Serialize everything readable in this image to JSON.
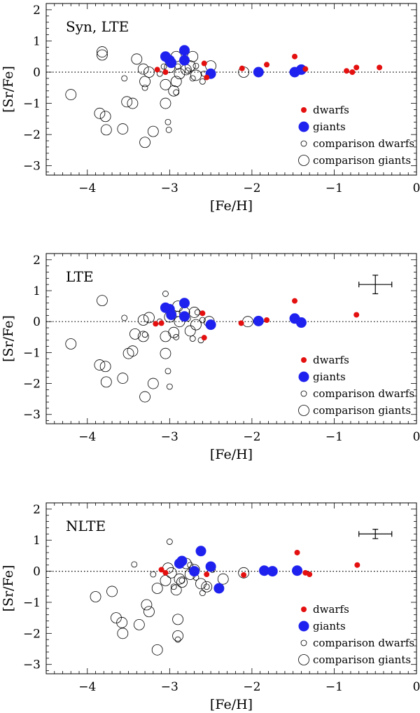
{
  "chart_data": [
    {
      "type": "scatter",
      "panel_label": "Syn, LTE",
      "xlabel": "[Fe/H]",
      "ylabel": "[Sr/Fe]",
      "xlim": [
        -4.5,
        0
      ],
      "ylim": [
        -3.3,
        2.2
      ],
      "xticks": [
        -4,
        -3,
        -2,
        -1,
        0
      ],
      "xtick_labels": [
        "−4",
        "−3",
        "−2",
        "−1",
        "0"
      ],
      "yticks": [
        -3,
        -2,
        -1,
        0,
        1,
        2
      ],
      "ytick_labels": [
        "−3",
        "−2",
        "−1",
        "0",
        "1",
        "2"
      ],
      "reference_line_y": 0,
      "legend": {
        "placement": "lower-right",
        "entries": [
          "dwarfs",
          "giants",
          "comparison dwarfs",
          "comparison giants"
        ]
      },
      "series": [
        {
          "name": "dwarfs",
          "points": [
            [
              -3.15,
              0.08
            ],
            [
              -3.05,
              0.0
            ],
            [
              -2.58,
              0.28
            ],
            [
              -2.55,
              -0.17
            ],
            [
              -2.12,
              0.12
            ],
            [
              -1.82,
              0.24
            ],
            [
              -1.48,
              0.5
            ],
            [
              -1.35,
              0.1
            ],
            [
              -0.85,
              0.04
            ],
            [
              -0.78,
              0.0
            ],
            [
              -0.73,
              0.15
            ],
            [
              -0.45,
              0.15
            ]
          ]
        },
        {
          "name": "giants",
          "points": [
            [
              -3.05,
              0.5
            ],
            [
              -3.0,
              0.38
            ],
            [
              -2.98,
              0.3
            ],
            [
              -2.82,
              0.7
            ],
            [
              -2.82,
              0.38
            ],
            [
              -2.5,
              -0.05
            ],
            [
              -1.92,
              0.0
            ],
            [
              -1.48,
              0.0
            ],
            [
              -1.4,
              0.08
            ]
          ]
        },
        {
          "name": "comparison dwarfs",
          "points": [
            [
              -3.55,
              -0.2
            ],
            [
              -3.3,
              -0.5
            ],
            [
              -3.12,
              -0.05
            ],
            [
              -3.07,
              0.18
            ],
            [
              -3.02,
              -1.6
            ],
            [
              -3.01,
              -1.85
            ],
            [
              -2.92,
              -0.65
            ],
            [
              -2.9,
              0.18
            ],
            [
              -2.78,
              0.05
            ],
            [
              -2.72,
              -0.2
            ],
            [
              -2.68,
              0.2
            ],
            [
              -2.6,
              -0.3
            ],
            [
              -2.58,
              -0.05
            ]
          ]
        },
        {
          "name": "comparison giants",
          "points": [
            [
              -4.2,
              -0.72
            ],
            [
              -3.82,
              0.65
            ],
            [
              -3.82,
              0.55
            ],
            [
              -3.85,
              -1.32
            ],
            [
              -3.78,
              -1.42
            ],
            [
              -3.77,
              -1.85
            ],
            [
              -3.57,
              -1.82
            ],
            [
              -3.52,
              -0.95
            ],
            [
              -3.45,
              -1.0
            ],
            [
              -3.4,
              0.42
            ],
            [
              -3.32,
              0.1
            ],
            [
              -3.3,
              -0.3
            ],
            [
              -3.3,
              -2.25
            ],
            [
              -3.25,
              -0.0
            ],
            [
              -3.2,
              -1.9
            ],
            [
              -3.05,
              -1.0
            ],
            [
              -3.05,
              -0.4
            ],
            [
              -3.0,
              0.15
            ],
            [
              -2.95,
              -0.6
            ],
            [
              -2.92,
              -0.3
            ],
            [
              -2.92,
              0.5
            ],
            [
              -2.88,
              -0.05
            ],
            [
              -2.8,
              0.08
            ],
            [
              -2.75,
              0.2
            ],
            [
              -2.72,
              0.5
            ],
            [
              -2.68,
              -0.1
            ],
            [
              -2.5,
              0.2
            ],
            [
              -2.1,
              0.0
            ]
          ]
        }
      ]
    },
    {
      "type": "scatter",
      "panel_label": "LTE",
      "xlabel": "[Fe/H]",
      "ylabel": "[Sr/Fe]",
      "xlim": [
        -4.5,
        0
      ],
      "ylim": [
        -3.3,
        2.2
      ],
      "xticks": [
        -4,
        -3,
        -2,
        -1,
        0
      ],
      "xtick_labels": [
        "−4",
        "−3",
        "−2",
        "−1",
        "0"
      ],
      "yticks": [
        -3,
        -2,
        -1,
        0,
        1,
        2
      ],
      "ytick_labels": [
        "−3",
        "−2",
        "−1",
        "0",
        "1",
        "2"
      ],
      "reference_line_y": 0,
      "error_bar": {
        "x": -0.5,
        "y": 1.2,
        "xerr": 0.2,
        "yerr": 0.3
      },
      "legend": {
        "placement": "lower-right",
        "entries": [
          "dwarfs",
          "giants",
          "comparison dwarfs",
          "comparison giants"
        ]
      },
      "series": [
        {
          "name": "dwarfs",
          "points": [
            [
              -3.17,
              -0.07
            ],
            [
              -3.1,
              -0.05
            ],
            [
              -2.6,
              0.27
            ],
            [
              -2.58,
              -0.52
            ],
            [
              -2.13,
              -0.05
            ],
            [
              -1.82,
              0.05
            ],
            [
              -1.48,
              0.67
            ],
            [
              -0.73,
              0.22
            ]
          ]
        },
        {
          "name": "giants",
          "points": [
            [
              -3.05,
              0.45
            ],
            [
              -3.0,
              0.4
            ],
            [
              -2.98,
              0.22
            ],
            [
              -2.82,
              0.6
            ],
            [
              -2.82,
              0.17
            ],
            [
              -2.5,
              -0.1
            ],
            [
              -1.92,
              0.02
            ],
            [
              -1.48,
              0.1
            ],
            [
              -1.4,
              -0.03
            ]
          ]
        },
        {
          "name": "comparison dwarfs",
          "points": [
            [
              -3.55,
              0.12
            ],
            [
              -3.3,
              -0.42
            ],
            [
              -3.12,
              0.0
            ],
            [
              -3.05,
              0.9
            ],
            [
              -3.02,
              -1.6
            ],
            [
              -3.0,
              -2.1
            ],
            [
              -2.92,
              -0.5
            ],
            [
              -2.9,
              0.25
            ],
            [
              -2.78,
              0.1
            ],
            [
              -2.72,
              -0.55
            ],
            [
              -2.66,
              0.3
            ],
            [
              -2.62,
              -0.6
            ],
            [
              -2.6,
              0.05
            ]
          ]
        },
        {
          "name": "comparison giants",
          "points": [
            [
              -4.2,
              -0.72
            ],
            [
              -3.82,
              0.68
            ],
            [
              -3.85,
              -1.4
            ],
            [
              -3.78,
              -1.45
            ],
            [
              -3.77,
              -1.95
            ],
            [
              -3.57,
              -1.83
            ],
            [
              -3.5,
              -1.03
            ],
            [
              -3.45,
              -0.95
            ],
            [
              -3.42,
              -0.4
            ],
            [
              -3.32,
              -0.48
            ],
            [
              -3.32,
              0.05
            ],
            [
              -3.3,
              -2.43
            ],
            [
              -3.25,
              0.13
            ],
            [
              -3.2,
              -2.0
            ],
            [
              -3.05,
              -1.03
            ],
            [
              -3.05,
              -0.48
            ],
            [
              -3.0,
              0.15
            ],
            [
              -2.95,
              -0.35
            ],
            [
              -2.9,
              0.5
            ],
            [
              -2.88,
              0.0
            ],
            [
              -2.82,
              0.3
            ],
            [
              -2.75,
              -0.3
            ],
            [
              -2.7,
              0.3
            ],
            [
              -2.68,
              -0.1
            ],
            [
              -2.52,
              0.0
            ],
            [
              -2.05,
              0.0
            ]
          ]
        }
      ]
    },
    {
      "type": "scatter",
      "panel_label": "NLTE",
      "xlabel": "[Fe/H]",
      "ylabel": "[Sr/Fe]",
      "xlim": [
        -4.5,
        0
      ],
      "ylim": [
        -3.3,
        2.2
      ],
      "xticks": [
        -4,
        -3,
        -2,
        -1,
        0
      ],
      "xtick_labels": [
        "−4",
        "−3",
        "−2",
        "−1",
        "0"
      ],
      "yticks": [
        -3,
        -2,
        -1,
        0,
        1,
        2
      ],
      "ytick_labels": [
        "−3",
        "−2",
        "−1",
        "0",
        "1",
        "2"
      ],
      "reference_line_y": 0,
      "error_bar": {
        "x": -0.5,
        "y": 1.2,
        "xerr": 0.2,
        "yerr": 0.15
      },
      "legend": {
        "placement": "lower-right",
        "entries": [
          "dwarfs",
          "giants",
          "comparison dwarfs",
          "comparison giants"
        ]
      },
      "series": [
        {
          "name": "dwarfs",
          "points": [
            [
              -3.1,
              0.05
            ],
            [
              -3.05,
              -0.05
            ],
            [
              -2.55,
              -0.1
            ],
            [
              -2.1,
              -0.12
            ],
            [
              -1.45,
              0.6
            ],
            [
              -1.35,
              -0.05
            ],
            [
              -1.3,
              -0.1
            ],
            [
              -0.72,
              0.2
            ]
          ]
        },
        {
          "name": "giants",
          "points": [
            [
              -2.88,
              0.25
            ],
            [
              -2.85,
              0.33
            ],
            [
              -2.7,
              0.0
            ],
            [
              -2.62,
              0.65
            ],
            [
              -2.5,
              0.15
            ],
            [
              -2.4,
              -0.55
            ],
            [
              -1.85,
              0.02
            ],
            [
              -1.75,
              0.0
            ],
            [
              -1.45,
              0.02
            ]
          ]
        },
        {
          "name": "comparison dwarfs",
          "points": [
            [
              -3.43,
              0.22
            ],
            [
              -3.2,
              -0.1
            ],
            [
              -3.0,
              0.95
            ],
            [
              -2.95,
              -0.5
            ],
            [
              -2.9,
              -2.2
            ],
            [
              -2.85,
              -0.3
            ],
            [
              -2.75,
              0.2
            ],
            [
              -2.68,
              -0.2
            ],
            [
              -2.6,
              -0.7
            ],
            [
              -2.55,
              -0.5
            ],
            [
              -2.48,
              0.05
            ]
          ]
        },
        {
          "name": "comparison giants",
          "points": [
            [
              -3.9,
              -0.82
            ],
            [
              -3.7,
              -0.65
            ],
            [
              -3.65,
              -1.5
            ],
            [
              -3.58,
              -1.65
            ],
            [
              -3.57,
              -2.0
            ],
            [
              -3.37,
              -1.72
            ],
            [
              -3.28,
              -1.08
            ],
            [
              -3.25,
              -1.3
            ],
            [
              -3.15,
              -2.53
            ],
            [
              -3.15,
              -0.55
            ],
            [
              -3.05,
              -0.3
            ],
            [
              -3.02,
              0.1
            ],
            [
              -2.98,
              -0.05
            ],
            [
              -2.92,
              -0.6
            ],
            [
              -2.9,
              -1.55
            ],
            [
              -2.9,
              -2.08
            ],
            [
              -2.88,
              -0.25
            ],
            [
              -2.85,
              -0.35
            ],
            [
              -2.8,
              0.25
            ],
            [
              -2.75,
              -0.1
            ],
            [
              -2.7,
              0.05
            ],
            [
              -2.62,
              -0.4
            ],
            [
              -2.55,
              -0.5
            ],
            [
              -2.35,
              -0.25
            ],
            [
              -2.1,
              -0.05
            ]
          ]
        }
      ]
    }
  ],
  "colors": {
    "dwarfs": "#e41010",
    "giants": "#1f22ee",
    "comparison": "#000000"
  }
}
